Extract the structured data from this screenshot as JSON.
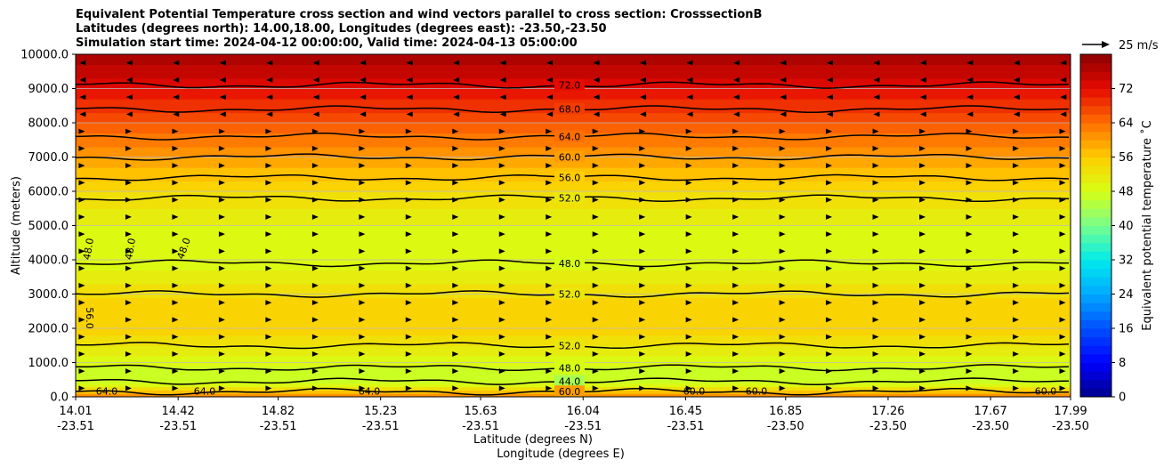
{
  "chart_data": {
    "type": "heatmap",
    "title_lines": [
      "Equivalent Potential Temperature cross section and wind vectors parallel to cross section: CrosssectionB",
      "Latitudes (degrees north): 14.00,18.00, Longitudes (degrees east): -23.50,-23.50",
      "Simulation start time: 2024-04-12 00:00:00, Valid time: 2024-04-13 05:00:00"
    ],
    "ylabel": "Altitude (meters)",
    "xlabel_lat": "Latitude (degrees N)",
    "xlabel_lon": "Longitude (degrees E)",
    "ylim": [
      0,
      10000
    ],
    "xlim": [
      14.01,
      17.99
    ],
    "y_ticks": [
      0,
      1000,
      2000,
      3000,
      4000,
      5000,
      6000,
      7000,
      8000,
      9000,
      10000
    ],
    "y_tick_labels": [
      "0.0",
      "1000.0",
      "2000.0",
      "3000.0",
      "4000.0",
      "5000.0",
      "6000.0",
      "7000.0",
      "8000.0",
      "9000.0",
      "10000.0"
    ],
    "x_ticks": [
      14.01,
      14.42,
      14.82,
      15.23,
      15.63,
      16.04,
      16.45,
      16.85,
      17.26,
      17.67,
      17.99
    ],
    "x_tick_lat_labels": [
      "14.01",
      "14.42",
      "14.82",
      "15.23",
      "15.63",
      "16.04",
      "16.45",
      "16.85",
      "17.26",
      "17.67",
      "17.99"
    ],
    "x_tick_lon_labels": [
      "-23.51",
      "-23.51",
      "-23.51",
      "-23.51",
      "-23.51",
      "-23.51",
      "-23.51",
      "-23.50",
      "-23.50",
      "-23.50",
      "-23.50"
    ],
    "vertical_profile": {
      "altitude_m": [
        0,
        150,
        400,
        800,
        1200,
        1600,
        2000,
        2500,
        3000,
        3400,
        3800,
        4200,
        4700,
        5200,
        5700,
        6100,
        6500,
        7000,
        7500,
        8000,
        8500,
        9000,
        9500,
        10000
      ],
      "theta_e_C": [
        64,
        56,
        46,
        47,
        50,
        53,
        55,
        55.5,
        53.5,
        51.5,
        49.5,
        48,
        48.5,
        51,
        52.5,
        54.5,
        57,
        60,
        63,
        66,
        69,
        72,
        75,
        78
      ]
    },
    "contour_levels_labeled": [
      {
        "value": 72.0,
        "label": "72.0",
        "altitude_m": 9100
      },
      {
        "value": 68.0,
        "label": "68.0",
        "altitude_m": 8400
      },
      {
        "value": 64.0,
        "label": "64.0",
        "altitude_m": 7600
      },
      {
        "value": 60.0,
        "label": "60.0",
        "altitude_m": 7000
      },
      {
        "value": 56.0,
        "label": "56.0",
        "altitude_m": 6400
      },
      {
        "value": 52.0,
        "label": "52.0",
        "altitude_m": 5800
      },
      {
        "value": 48.0,
        "label": "48.0",
        "altitude_m": 3900
      },
      {
        "value": 52.0,
        "label": "52.0",
        "altitude_m": 3000
      },
      {
        "value": 52.0,
        "label": "52.0",
        "altitude_m": 1500
      },
      {
        "value": 48.0,
        "label": "48.0",
        "altitude_m": 850
      },
      {
        "value": 44.0,
        "label": "44.0",
        "altitude_m": 450
      },
      {
        "value": 60.0,
        "label": "60.0",
        "altitude_m": 150
      }
    ],
    "rotated_contour_labels": [
      "48.0",
      "48.0",
      "48.0",
      "56.0"
    ],
    "near_surface_labels": [
      "64.0",
      "64.0",
      "64.0",
      "60.0",
      "60.0",
      "60.0"
    ],
    "colorbar": {
      "label": "Equivalent potential temperature ˚C",
      "range": [
        0,
        80
      ],
      "ticks": [
        0,
        8,
        16,
        24,
        32,
        40,
        48,
        56,
        64,
        72
      ],
      "tick_labels": [
        "0",
        "8",
        "16",
        "24",
        "32",
        "40",
        "48",
        "56",
        "64",
        "72"
      ]
    },
    "wind": {
      "reference_label": "25 m/s",
      "reference_speed_ms": 25,
      "regime": [
        {
          "from_m": 0,
          "to_m": 8000,
          "direction": "east",
          "speed_ms": 4
        },
        {
          "from_m": 8000,
          "to_m": 10000,
          "direction": "west",
          "speed_ms": 6
        }
      ]
    }
  }
}
